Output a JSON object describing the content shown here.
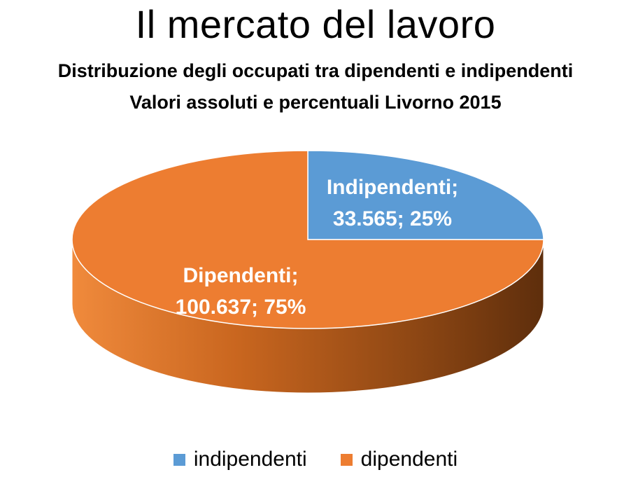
{
  "title": "Il mercato del lavoro",
  "chart_data": {
    "type": "pie",
    "title": "Distribuzione degli occupati tra dipendenti e indipendenti",
    "subtitle": "Valori assoluti e percentuali Livorno 2015",
    "three_d": true,
    "slices": [
      {
        "name": "indipendenti",
        "value": 33565,
        "percent": 25,
        "label_line1": "Indipendenti;",
        "label_line2": "33.565; 25%",
        "color": "#5B9BD5"
      },
      {
        "name": "dipendenti",
        "value": 100637,
        "percent": 75,
        "label_line1": "Dipendenti;",
        "label_line2": "100.637; 75%",
        "color": "#ED7D31"
      }
    ],
    "legend": {
      "position": "bottom",
      "items": [
        "indipendenti",
        "dipendenti"
      ]
    }
  }
}
